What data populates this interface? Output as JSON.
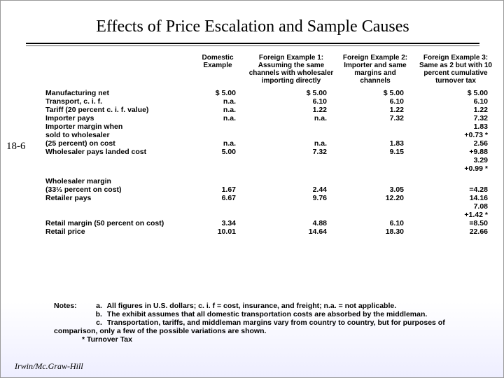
{
  "page_number": "18-6",
  "title": "Effects of Price Escalation and Sample Causes",
  "footer": "Irwin/Mc.Graw-Hill",
  "columns": {
    "c0": "",
    "c1": "Domestic Example",
    "c2": "Foreign Example 1: Assuming the same channels with wholesaler importing directly",
    "c3": "Foreign Example 2: Importer and same margins and channels",
    "c4": "Foreign Example 3: Same as 2 but with 10 percent cumulative turnover tax"
  },
  "rows": {
    "r0": {
      "label": "Manufacturing net",
      "c1": "$ 5.00",
      "c2": "$ 5.00",
      "c3": "$ 5.00",
      "c4": "$ 5.00"
    },
    "r1": {
      "label": "Transport, c. i. f.",
      "c1": "n.a.",
      "c2": "6.10",
      "c3": "6.10",
      "c4": "6.10"
    },
    "r2": {
      "label": "Tariff (20 percent c. i. f. value)",
      "c1": "n.a.",
      "c2": "1.22",
      "c3": "1.22",
      "c4": "1.22"
    },
    "r3": {
      "label": "Importer pays",
      "c1": "n.a.",
      "c2": "n.a.",
      "c3": "7.32",
      "c4": "7.32"
    },
    "r4": {
      "label": "Importer margin when",
      "c1": "",
      "c2": "",
      "c3": "",
      "c4": "1.83"
    },
    "r5": {
      "label": "sold to wholesaler",
      "c1": "",
      "c2": "",
      "c3": "",
      "c4": "+0.73 *"
    },
    "r6": {
      "label": "(25 percent) on cost",
      "c1": "n.a.",
      "c2": "n.a.",
      "c3": "1.83",
      "c4": "2.56"
    },
    "r7": {
      "label": "Wholesaler pays landed cost",
      "c1": "5.00",
      "c2": "7.32",
      "c3": "9.15",
      "c4": "+9.88"
    },
    "r8": {
      "label": "",
      "c1": "",
      "c2": "",
      "c3": "",
      "c4": "3.29"
    },
    "r9": {
      "label": "",
      "c1": "",
      "c2": "",
      "c3": "",
      "c4": "+0.99 *"
    },
    "r10": {
      "label": "Wholesaler margin",
      "c1": "",
      "c2": "",
      "c3": "",
      "c4": ""
    },
    "r11": {
      "label": "(33⅓ percent on cost)",
      "c1": "1.67",
      "c2": "2.44",
      "c3": "3.05",
      "c4": "=4.28"
    },
    "r12": {
      "label": "Retailer pays",
      "c1": "6.67",
      "c2": "9.76",
      "c3": "12.20",
      "c4": "14.16"
    },
    "r13": {
      "label": "",
      "c1": "",
      "c2": "",
      "c3": "",
      "c4": "7.08"
    },
    "r14": {
      "label": "",
      "c1": "",
      "c2": "",
      "c3": "",
      "c4": "+1.42 *"
    },
    "r15": {
      "label": "Retail margin (50 percent on cost)",
      "c1": "3.34",
      "c2": "4.88",
      "c3": "6.10",
      "c4": "=8.50"
    },
    "r16": {
      "label": "Retail price",
      "c1": "10.01",
      "c2": "14.64",
      "c3": "18.30",
      "c4": "22.66"
    }
  },
  "notes": {
    "prefix": "Notes:",
    "a_key": "a.",
    "a": "All figures in U.S. dollars; c. i. f = cost, insurance, and freight; n.a. = not applicable.",
    "b_key": "b.",
    "b": "The exhibit assumes that all domestic transportation costs are absorbed by the middleman.",
    "c_key": "c.",
    "c": "Transportation, tariffs, and middleman margins vary from country to country, but for purposes of comparison, only a few of the possible variations are shown.",
    "star": "* Turnover Tax"
  },
  "col_widths": {
    "c0": "210px",
    "c1": "80px",
    "c2": "130px",
    "c3": "110px",
    "c4": "120px"
  }
}
